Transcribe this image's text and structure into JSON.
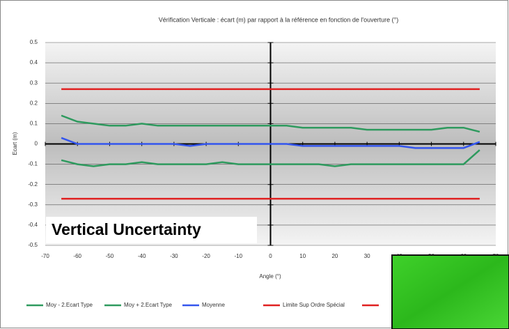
{
  "chart_data": {
    "type": "line",
    "title": "Vérification Verticale : écart (m) par rapport à la référence en fonction de l'ouverture (°)",
    "x_label": "Angle (°)",
    "y_label": "Ecart (m)",
    "annotation": "Vertical Uncertainty",
    "xlim": [
      -70,
      70
    ],
    "xticks": [
      -70,
      -60,
      -50,
      -40,
      -30,
      -20,
      -10,
      0,
      10,
      20,
      30,
      40,
      50,
      60,
      70
    ],
    "ylim": [
      -0.5,
      0.5
    ],
    "yticks": [
      -0.5,
      -0.4,
      -0.3,
      -0.2,
      -0.1,
      0,
      0.1,
      0.2,
      0.3,
      0.4,
      0.5
    ],
    "grid": true,
    "legend": "bottom",
    "series": [
      {
        "name": "Moy - 2.Ecart Type",
        "color": "#2e9a5e",
        "x": [
          -65,
          -60,
          -55,
          -50,
          -45,
          -40,
          -35,
          -30,
          -25,
          -20,
          -15,
          -10,
          -5,
          0,
          5,
          10,
          15,
          20,
          25,
          30,
          35,
          40,
          45,
          50,
          55,
          60,
          65
        ],
        "values": [
          -0.08,
          -0.1,
          -0.11,
          -0.1,
          -0.1,
          -0.09,
          -0.1,
          -0.1,
          -0.1,
          -0.1,
          -0.09,
          -0.1,
          -0.1,
          -0.1,
          -0.1,
          -0.1,
          -0.1,
          -0.11,
          -0.1,
          -0.1,
          -0.1,
          -0.1,
          -0.1,
          -0.1,
          -0.1,
          -0.1,
          -0.03
        ]
      },
      {
        "name": "Moy + 2.Ecart Type",
        "color": "#2e9a5e",
        "x": [
          -65,
          -60,
          -55,
          -50,
          -45,
          -40,
          -35,
          -30,
          -25,
          -20,
          -15,
          -10,
          -5,
          0,
          5,
          10,
          15,
          20,
          25,
          30,
          35,
          40,
          45,
          50,
          55,
          60,
          65
        ],
        "values": [
          0.14,
          0.11,
          0.1,
          0.09,
          0.09,
          0.1,
          0.09,
          0.09,
          0.09,
          0.09,
          0.09,
          0.09,
          0.09,
          0.09,
          0.09,
          0.08,
          0.08,
          0.08,
          0.08,
          0.07,
          0.07,
          0.07,
          0.07,
          0.07,
          0.08,
          0.08,
          0.06
        ]
      },
      {
        "name": "Moyenne",
        "color": "#3355ee",
        "x": [
          -65,
          -60,
          -55,
          -50,
          -45,
          -40,
          -35,
          -30,
          -25,
          -20,
          -15,
          -10,
          -5,
          0,
          5,
          10,
          15,
          20,
          25,
          30,
          35,
          40,
          45,
          50,
          55,
          60,
          65
        ],
        "values": [
          0.03,
          0,
          0,
          0,
          0,
          0,
          0,
          0,
          -0.01,
          0,
          0,
          0,
          0,
          0,
          0,
          -0.01,
          -0.01,
          -0.01,
          -0.01,
          -0.01,
          -0.01,
          -0.01,
          -0.02,
          -0.02,
          -0.02,
          -0.02,
          0.01
        ]
      },
      {
        "name": "Limite Sup Ordre Spécial",
        "color": "#e02020",
        "x": [
          -65,
          65
        ],
        "values": [
          0.27,
          0.27
        ]
      },
      {
        "color": "#e02020",
        "x": [
          -65,
          65
        ],
        "values": [
          -0.27,
          -0.27
        ]
      }
    ]
  }
}
